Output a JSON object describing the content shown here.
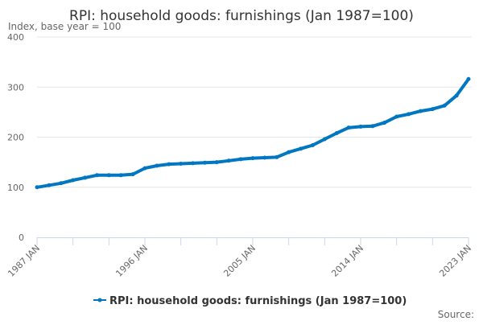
{
  "chart_data": {
    "type": "line",
    "title": "RPI: household goods: furnishings (Jan 1987=100)",
    "subtitle": "Index, base year = 100",
    "xlabel": "",
    "ylabel": "",
    "ylim": [
      0,
      400
    ],
    "yticks": [
      "0",
      "100",
      "200",
      "300",
      "400"
    ],
    "xlim": [
      1987,
      2023
    ],
    "xtick_labels": [
      "1987 JAN",
      "1996 JAN",
      "2005 JAN",
      "2014 JAN",
      "2023 JAN"
    ],
    "grid": true,
    "legend_position": "bottom",
    "color": "#0077c0",
    "series": [
      {
        "name": "RPI: household goods: furnishings (Jan 1987=100)",
        "x": [
          1987,
          1988,
          1989,
          1990,
          1991,
          1992,
          1993,
          1994,
          1995,
          1996,
          1997,
          1998,
          1999,
          2000,
          2001,
          2002,
          2003,
          2004,
          2005,
          2006,
          2007,
          2008,
          2009,
          2010,
          2011,
          2012,
          2013,
          2014,
          2015,
          2016,
          2017,
          2018,
          2019,
          2020,
          2021,
          2022,
          2023
        ],
        "values": [
          100,
          104,
          108,
          114,
          119,
          124,
          124,
          124,
          126,
          138,
          143,
          146,
          147,
          148,
          149,
          150,
          153,
          156,
          158,
          159,
          160,
          170,
          177,
          184,
          196,
          208,
          219,
          221,
          222,
          229,
          241,
          246,
          252,
          256,
          263,
          283,
          316
        ]
      }
    ],
    "source_label": "Source:"
  }
}
